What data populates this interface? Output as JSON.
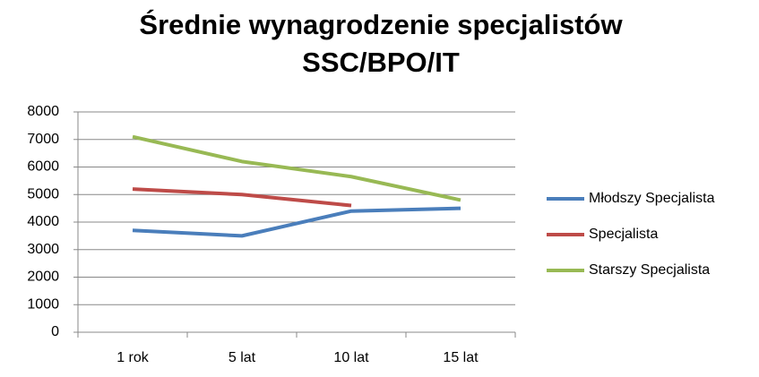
{
  "chart_data": {
    "type": "line",
    "title": [
      "Średnie wynagrodzenie specjalistów",
      "SSC/BPO/IT"
    ],
    "categories": [
      "1 rok",
      "5 lat",
      "10 lat",
      "15 lat"
    ],
    "series": [
      {
        "name": "Młodszy Specjalista",
        "color": "#4a7ebb",
        "values": [
          3700,
          3500,
          4400,
          4500
        ]
      },
      {
        "name": "Specjalista",
        "color": "#be4b48",
        "values": [
          5200,
          5000,
          4600,
          null
        ]
      },
      {
        "name": "Starszy Specjalista",
        "color": "#98b954",
        "values": [
          7100,
          6200,
          5650,
          4800
        ]
      }
    ],
    "ylim": [
      0,
      8000
    ],
    "yticks": [
      0,
      1000,
      2000,
      3000,
      4000,
      5000,
      6000,
      7000,
      8000
    ],
    "grid": true,
    "legend": "right"
  }
}
